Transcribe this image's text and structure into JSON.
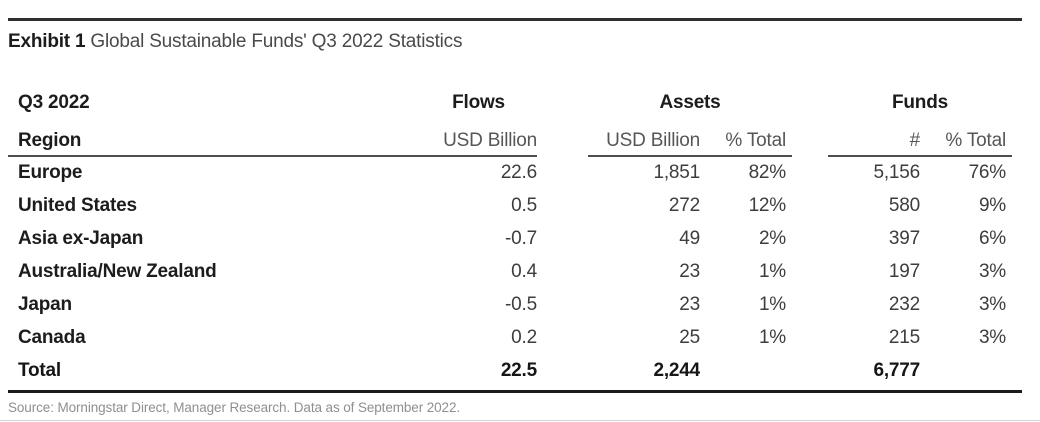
{
  "exhibit": {
    "label": "Exhibit 1",
    "title": "Global Sustainable Funds' Q3 2022 Statistics"
  },
  "table": {
    "group_headers": {
      "period": "Q3 2022",
      "flows": "Flows",
      "assets": "Assets",
      "funds": "Funds"
    },
    "sub_headers": {
      "region": "Region",
      "flows_unit": "USD Billion",
      "assets_unit": "USD Billion",
      "assets_pct": "% Total",
      "funds_count": "#",
      "funds_pct": "% Total"
    },
    "rows": [
      {
        "region": "Europe",
        "flows": "22.6",
        "assets_usd": "1,851",
        "assets_pct": "82%",
        "funds_count": "5,156",
        "funds_pct": "76%",
        "is_total": false
      },
      {
        "region": "United States",
        "flows": "0.5",
        "assets_usd": "272",
        "assets_pct": "12%",
        "funds_count": "580",
        "funds_pct": "9%",
        "is_total": false
      },
      {
        "region": "Asia ex-Japan",
        "flows": "-0.7",
        "assets_usd": "49",
        "assets_pct": "2%",
        "funds_count": "397",
        "funds_pct": "6%",
        "is_total": false
      },
      {
        "region": "Australia/New Zealand",
        "flows": "0.4",
        "assets_usd": "23",
        "assets_pct": "1%",
        "funds_count": "197",
        "funds_pct": "3%",
        "is_total": false
      },
      {
        "region": "Japan",
        "flows": "-0.5",
        "assets_usd": "23",
        "assets_pct": "1%",
        "funds_count": "232",
        "funds_pct": "3%",
        "is_total": false
      },
      {
        "region": "Canada",
        "flows": "0.2",
        "assets_usd": "25",
        "assets_pct": "1%",
        "funds_count": "215",
        "funds_pct": "3%",
        "is_total": false
      },
      {
        "region": "Total",
        "flows": "22.5",
        "assets_usd": "2,244",
        "assets_pct": "",
        "funds_count": "6,777",
        "funds_pct": "",
        "is_total": true
      }
    ]
  },
  "source": "Source: Morningstar Direct, Manager Research. Data as of September 2022.",
  "colors": {
    "text_dark": "#1c1c1c",
    "text_value": "#3d3d3d",
    "text_subhead": "#565656",
    "text_source": "#8f8f8f",
    "rule_top": "#2e2e2e",
    "rule_header": "#4f4f4f",
    "rule_bottom": "#1a1a1a",
    "rule_faint": "#d4d4d4",
    "background": "#ffffff"
  }
}
